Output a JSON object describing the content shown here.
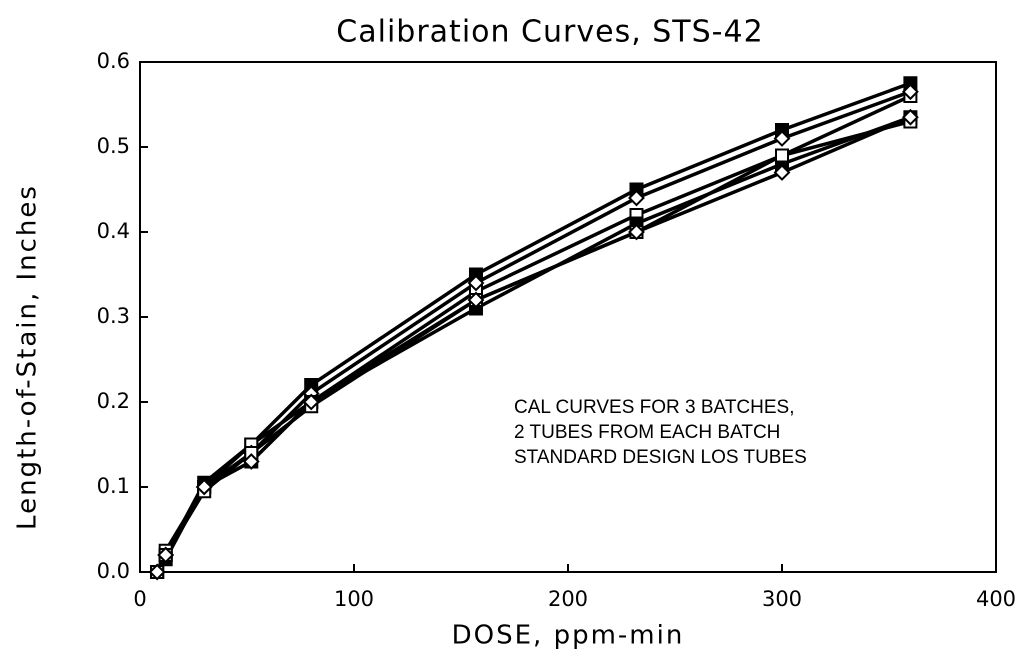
{
  "chart_data": {
    "type": "line",
    "title": "Calibration Curves, STS-42",
    "x_label": "DOSE, ppm-min",
    "y_label": "Length-of-Stain, Inches",
    "annotations": [
      "CAL CURVES FOR 3 BATCHES,",
      "2 TUBES FROM EACH BATCH",
      "STANDARD DESIGN LOS TUBES"
    ],
    "x": [
      8,
      12,
      30,
      52,
      80,
      157,
      232,
      300,
      360
    ],
    "series": [
      {
        "color": "#000000",
        "marker": "filled-square",
        "values": [
          0.0,
          0.02,
          0.105,
          0.15,
          0.22,
          0.35,
          0.45,
          0.52,
          0.575
        ]
      },
      {
        "color": "#000000",
        "marker": "open-square",
        "values": [
          0.0,
          0.025,
          0.1,
          0.15,
          0.2,
          0.33,
          0.42,
          0.49,
          0.56
        ]
      },
      {
        "color": "#000000",
        "marker": "diamond",
        "values": [
          0.0,
          0.02,
          0.1,
          0.14,
          0.21,
          0.34,
          0.44,
          0.51,
          0.565
        ]
      },
      {
        "color": "#000000",
        "marker": "filled-square",
        "values": [
          0.0,
          0.015,
          0.1,
          0.13,
          0.2,
          0.31,
          0.41,
          0.48,
          0.535
        ]
      },
      {
        "color": "#000000",
        "marker": "open-square",
        "values": [
          0.0,
          0.02,
          0.095,
          0.14,
          0.195,
          0.32,
          0.4,
          0.49,
          0.53
        ]
      },
      {
        "color": "#000000",
        "marker": "diamond",
        "values": [
          0.0,
          0.02,
          0.1,
          0.13,
          0.2,
          0.32,
          0.4,
          0.47,
          0.535
        ]
      }
    ],
    "xlim": [
      0,
      400
    ],
    "xticks": [
      0,
      100,
      200,
      300,
      400
    ],
    "ylim": [
      0,
      0.6
    ],
    "yticks": [
      {
        "value": 0,
        "label": "0.0"
      },
      0.1,
      0.2,
      0.3,
      0.4,
      0.5,
      0.6
    ],
    "grid": false
  }
}
